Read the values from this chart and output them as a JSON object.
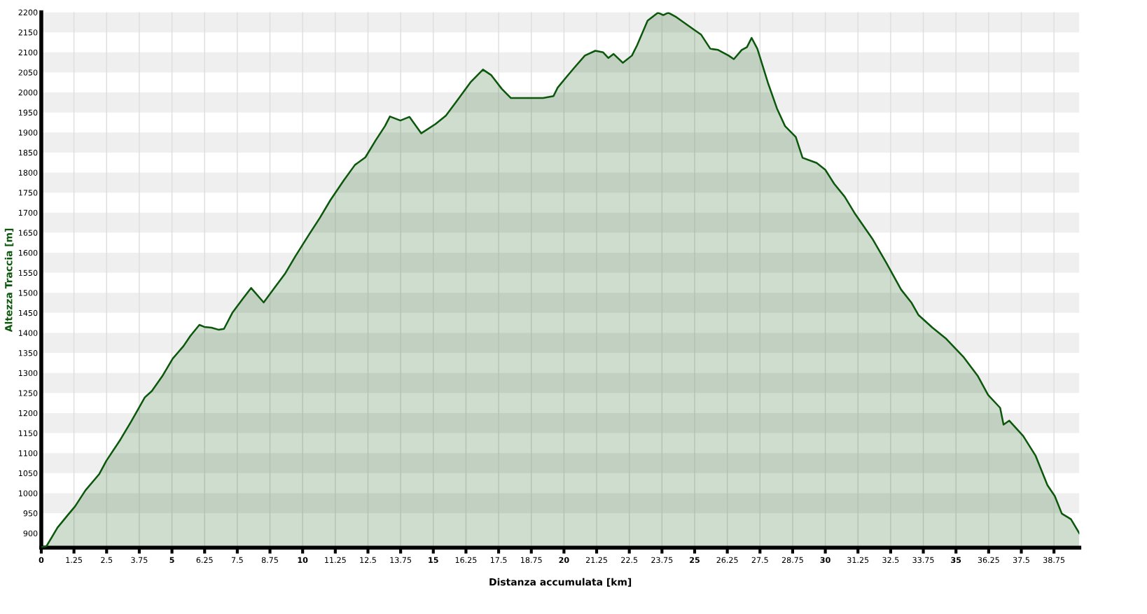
{
  "chart_data": {
    "type": "area",
    "xlabel": "Distanza accumulata [km]",
    "ylabel": "Altezza Traccia [m]",
    "xlim": [
      0,
      39.72
    ],
    "ylim": [
      864,
      2200
    ],
    "xticks": [
      0,
      1.25,
      2.5,
      3.75,
      5,
      6.25,
      7.5,
      8.75,
      10,
      11.25,
      12.5,
      13.75,
      15,
      16.25,
      17.5,
      18.75,
      20,
      21.25,
      22.5,
      23.75,
      25,
      26.25,
      27.5,
      28.75,
      30,
      31.25,
      32.5,
      33.75,
      35,
      36.25,
      37.5,
      38.75
    ],
    "yticks": [
      900,
      950,
      1000,
      1050,
      1100,
      1150,
      1200,
      1250,
      1300,
      1350,
      1400,
      1450,
      1500,
      1550,
      1600,
      1650,
      1700,
      1750,
      1800,
      1850,
      1900,
      1950,
      2000,
      2050,
      2100,
      2150,
      2200
    ],
    "grid": true,
    "series": [
      {
        "color": "#0b570b",
        "x": [
          0,
          0.2,
          0.62,
          1.02,
          1.29,
          1.69,
          2.22,
          2.49,
          3.03,
          3.43,
          3.7,
          3.96,
          4.23,
          4.63,
          5.03,
          5.44,
          5.7,
          6.05,
          6.24,
          6.51,
          6.78,
          6.99,
          7.31,
          7.71,
          8.03,
          8.51,
          8.92,
          9.32,
          9.72,
          10.26,
          10.66,
          11.06,
          11.59,
          12.0,
          12.4,
          12.8,
          13.15,
          13.34,
          13.74,
          14.09,
          14.54,
          15.08,
          15.48,
          15.88,
          16.42,
          16.9,
          17.22,
          17.62,
          17.97,
          18.4,
          19.2,
          19.6,
          19.76,
          20.1,
          20.4,
          20.8,
          21.2,
          21.5,
          21.7,
          21.9,
          22.25,
          22.6,
          22.8,
          23.2,
          23.6,
          23.8,
          23.99,
          24.3,
          24.97,
          25.25,
          25.6,
          25.9,
          26.3,
          26.5,
          26.8,
          27.0,
          27.18,
          27.4,
          27.8,
          28.15,
          28.46,
          28.87,
          29.13,
          29.67,
          30.0,
          30.34,
          30.74,
          31.15,
          31.8,
          32.35,
          32.9,
          33.29,
          33.56,
          34.1,
          34.63,
          35.3,
          35.84,
          36.23,
          36.69,
          36.82,
          37.04,
          37.57,
          38.05,
          38.5,
          38.78,
          39.05,
          39.4,
          39.72
        ],
        "values": [
          865,
          868,
          914,
          946,
          967,
          1007,
          1048,
          1081,
          1134,
          1178,
          1209,
          1239,
          1255,
          1292,
          1336,
          1367,
          1392,
          1420,
          1415,
          1413,
          1408,
          1410,
          1450,
          1485,
          1512,
          1476,
          1512,
          1547,
          1591,
          1647,
          1687,
          1731,
          1782,
          1819,
          1838,
          1881,
          1916,
          1940,
          1930,
          1939,
          1898,
          1921,
          1942,
          1977,
          2025,
          2057,
          2043,
          2009,
          1986,
          1986,
          1986,
          1991,
          2012,
          2039,
          2062,
          2092,
          2104,
          2100,
          2086,
          2096,
          2074,
          2092,
          2118,
          2179,
          2199,
          2193,
          2199,
          2188,
          2157,
          2144,
          2109,
          2106,
          2092,
          2083,
          2106,
          2113,
          2136,
          2109,
          2025,
          1960,
          1916,
          1889,
          1837,
          1824,
          1807,
          1772,
          1740,
          1696,
          1635,
          1573,
          1508,
          1476,
          1445,
          1413,
          1385,
          1339,
          1292,
          1245,
          1213,
          1171,
          1181,
          1143,
          1093,
          1020,
          993,
          949,
          935,
          900
        ]
      }
    ]
  }
}
